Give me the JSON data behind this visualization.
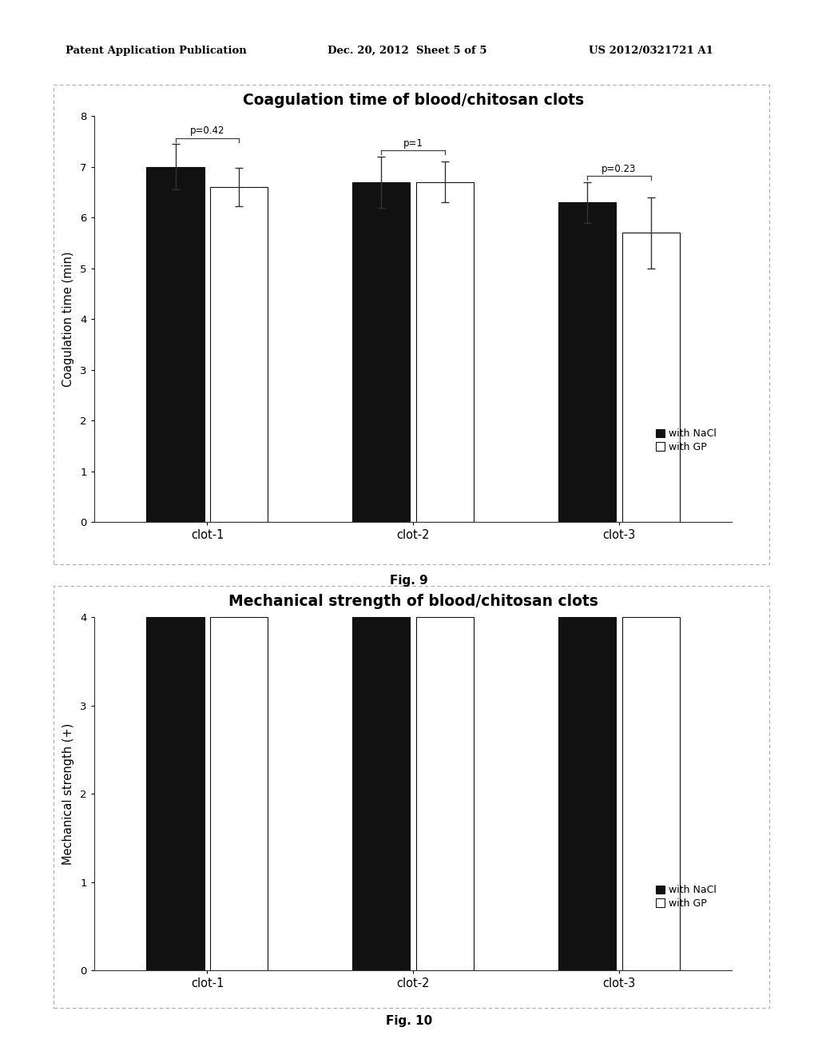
{
  "fig9": {
    "title": "Coagulation time of blood/chitosan clots",
    "ylabel": "Coagulation time (min)",
    "categories": [
      "clot-1",
      "clot-2",
      "clot-3"
    ],
    "nacl_values": [
      7.0,
      6.7,
      6.3
    ],
    "gp_values": [
      6.6,
      6.7,
      5.7
    ],
    "nacl_errors": [
      0.45,
      0.5,
      0.4
    ],
    "gp_errors": [
      0.38,
      0.4,
      0.7
    ],
    "p_values": [
      "p=0.42",
      "p=1",
      "p=0.23"
    ],
    "ylim": [
      0,
      8
    ],
    "yticks": [
      0,
      1,
      2,
      3,
      4,
      5,
      6,
      7,
      8
    ],
    "fig_label": "Fig. 9"
  },
  "fig10": {
    "title": "Mechanical strength of blood/chitosan clots",
    "ylabel": "Mechanical strength (+)",
    "categories": [
      "clot-1",
      "clot-2",
      "clot-3"
    ],
    "nacl_values": [
      4.0,
      4.0,
      4.0
    ],
    "gp_values": [
      4.0,
      4.0,
      4.0
    ],
    "nacl_errors": [
      0.0,
      0.0,
      0.0
    ],
    "gp_errors": [
      0.0,
      0.0,
      0.0
    ],
    "ylim": [
      0,
      4
    ],
    "yticks": [
      0,
      1,
      2,
      3,
      4
    ],
    "fig_label": "Fig. 10"
  },
  "nacl_color": "#111111",
  "gp_color": "#ffffff",
  "bar_edgecolor": "#111111",
  "legend_nacl": "with NaCl",
  "legend_gp": "with GP",
  "header_left": "Patent Application Publication",
  "header_mid": "Dec. 20, 2012  Sheet 5 of 5",
  "header_right": "US 2012/0321721 A1",
  "background_color": "#ffffff",
  "panel_background": "#ffffff",
  "border_color": "#aaaaaa",
  "bar_width": 0.28,
  "bar_gap": 0.03
}
